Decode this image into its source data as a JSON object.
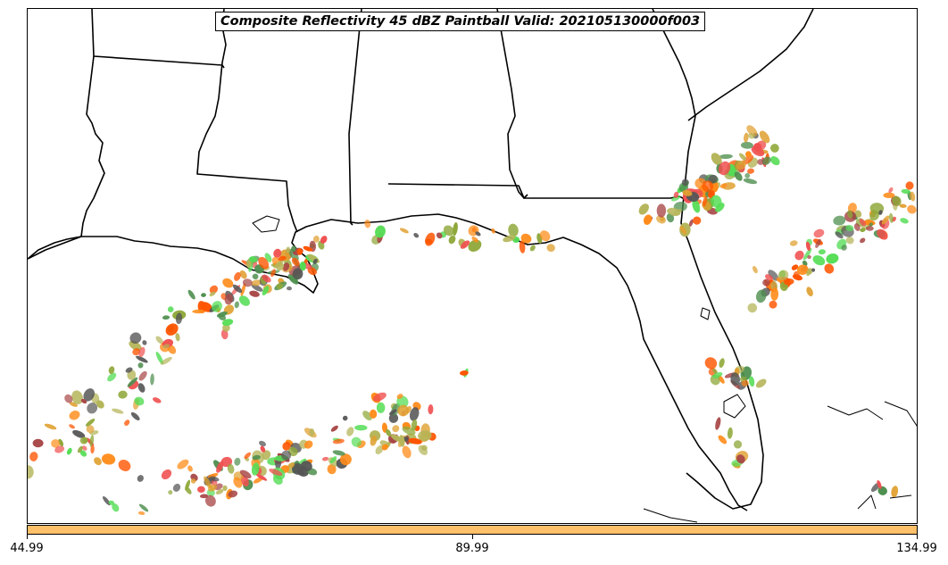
{
  "title": "Composite Reflectivity 45 dBZ Paintball Valid: 202105130000f003",
  "colors": {
    "paintball": [
      "#f05050",
      "#55dd55",
      "#ff8c1a",
      "#b5b55a",
      "#a84646",
      "#4f8f4f",
      "#555555",
      "#e0a030",
      "#ff5500",
      "#8fa83a"
    ],
    "colorbar_fill": "#ffc06a"
  },
  "colorbar": {
    "ticks": [
      "44.99",
      "89.99",
      "134.99"
    ],
    "values": [
      44.99,
      89.99,
      134.99
    ]
  },
  "map": {
    "features": [
      "state-borders",
      "coastline",
      "reflectivity-paintballs"
    ]
  }
}
